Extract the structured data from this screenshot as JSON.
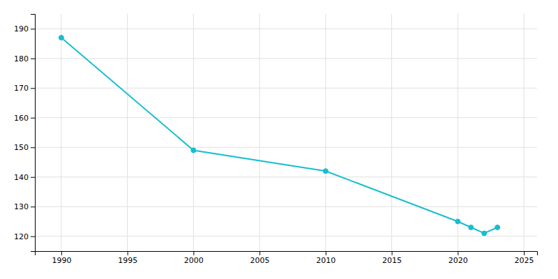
{
  "chart_data": {
    "type": "line",
    "x": [
      1990,
      2000,
      2010,
      2020,
      2021,
      2022,
      2023
    ],
    "values": [
      187,
      149,
      142,
      125,
      123,
      121,
      123
    ],
    "color": "#17BECF",
    "marker": "circle",
    "xlim": [
      1988,
      2026
    ],
    "ylim": [
      115,
      195
    ],
    "xticks": [
      1990,
      1995,
      2000,
      2005,
      2010,
      2015,
      2020,
      2025
    ],
    "yticks": [
      120,
      130,
      140,
      150,
      160,
      170,
      180,
      190
    ],
    "grid": true
  }
}
